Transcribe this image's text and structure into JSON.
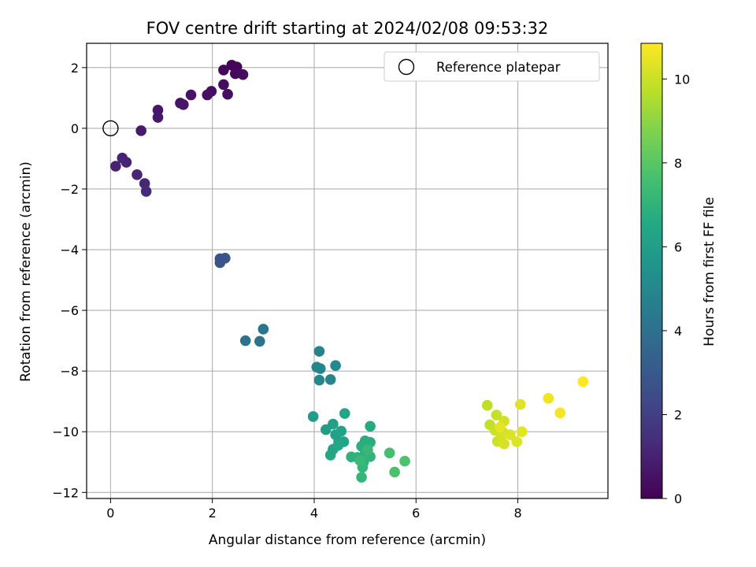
{
  "chart_data": {
    "type": "scatter",
    "title": "FOV centre drift starting at 2024/02/08 09:53:32",
    "xlabel": "Angular distance from reference (arcmin)",
    "ylabel": "Rotation from reference (arcmin)",
    "colorbar_label": "Hours from first FF file",
    "xlim": [
      -0.47,
      9.77
    ],
    "ylim": [
      -12.2,
      2.8
    ],
    "x_ticks": [
      0,
      2,
      4,
      6,
      8
    ],
    "y_ticks": [
      2,
      0,
      -2,
      -4,
      -6,
      -8,
      -10,
      -12
    ],
    "colorbar_range": [
      0,
      10.85
    ],
    "colorbar_ticks": [
      0,
      2,
      4,
      6,
      8,
      10
    ],
    "colormap": "viridis",
    "grid": true,
    "legend_position": "top-right",
    "reference": {
      "name": "Reference platepar",
      "x": 0,
      "y": 0
    },
    "points": [
      {
        "x": 2.38,
        "y": 2.08,
        "c": 0.1
      },
      {
        "x": 2.48,
        "y": 2.02,
        "c": 0.15
      },
      {
        "x": 2.22,
        "y": 1.92,
        "c": 0.2
      },
      {
        "x": 2.45,
        "y": 1.8,
        "c": 0.25
      },
      {
        "x": 2.6,
        "y": 1.77,
        "c": 0.3
      },
      {
        "x": 2.22,
        "y": 1.44,
        "c": 0.35
      },
      {
        "x": 2.3,
        "y": 1.12,
        "c": 0.4
      },
      {
        "x": 1.98,
        "y": 1.22,
        "c": 0.45
      },
      {
        "x": 1.9,
        "y": 1.1,
        "c": 0.5
      },
      {
        "x": 1.58,
        "y": 1.1,
        "c": 0.55
      },
      {
        "x": 1.37,
        "y": 0.83,
        "c": 0.6
      },
      {
        "x": 1.43,
        "y": 0.78,
        "c": 0.65
      },
      {
        "x": 0.93,
        "y": 0.6,
        "c": 0.7
      },
      {
        "x": 0.93,
        "y": 0.36,
        "c": 0.75
      },
      {
        "x": 0.6,
        "y": -0.08,
        "c": 0.8
      },
      {
        "x": 0.1,
        "y": -1.25,
        "c": 1.0
      },
      {
        "x": 0.23,
        "y": -0.98,
        "c": 1.05
      },
      {
        "x": 0.31,
        "y": -1.12,
        "c": 1.1
      },
      {
        "x": 0.52,
        "y": -1.53,
        "c": 1.15
      },
      {
        "x": 0.67,
        "y": -1.82,
        "c": 1.2
      },
      {
        "x": 0.7,
        "y": -2.08,
        "c": 1.25
      },
      {
        "x": 2.15,
        "y": -4.3,
        "c": 2.7
      },
      {
        "x": 2.25,
        "y": -4.28,
        "c": 2.75
      },
      {
        "x": 2.15,
        "y": -4.43,
        "c": 2.8
      },
      {
        "x": 2.65,
        "y": -7.0,
        "c": 4.1
      },
      {
        "x": 2.93,
        "y": -7.02,
        "c": 4.15
      },
      {
        "x": 3.0,
        "y": -6.62,
        "c": 4.2
      },
      {
        "x": 4.1,
        "y": -7.35,
        "c": 4.8
      },
      {
        "x": 4.05,
        "y": -7.87,
        "c": 4.85
      },
      {
        "x": 4.12,
        "y": -7.92,
        "c": 4.9
      },
      {
        "x": 4.1,
        "y": -8.3,
        "c": 4.95
      },
      {
        "x": 4.32,
        "y": -8.28,
        "c": 5.0
      },
      {
        "x": 4.42,
        "y": -7.82,
        "c": 5.05
      },
      {
        "x": 3.98,
        "y": -9.5,
        "c": 6.0
      },
      {
        "x": 4.23,
        "y": -9.93,
        "c": 6.05
      },
      {
        "x": 4.37,
        "y": -9.75,
        "c": 6.1
      },
      {
        "x": 4.42,
        "y": -10.1,
        "c": 6.15
      },
      {
        "x": 4.48,
        "y": -10.32,
        "c": 6.2
      },
      {
        "x": 4.53,
        "y": -9.98,
        "c": 6.25
      },
      {
        "x": 4.58,
        "y": -10.33,
        "c": 6.3
      },
      {
        "x": 4.37,
        "y": -10.58,
        "c": 6.35
      },
      {
        "x": 4.32,
        "y": -10.77,
        "c": 6.4
      },
      {
        "x": 4.6,
        "y": -9.4,
        "c": 6.45
      },
      {
        "x": 4.47,
        "y": -10.45,
        "c": 6.5
      },
      {
        "x": 5.1,
        "y": -9.82,
        "c": 6.6
      },
      {
        "x": 5.0,
        "y": -10.3,
        "c": 6.7
      },
      {
        "x": 5.1,
        "y": -10.35,
        "c": 6.75
      },
      {
        "x": 4.93,
        "y": -10.48,
        "c": 6.8
      },
      {
        "x": 5.0,
        "y": -10.65,
        "c": 6.85
      },
      {
        "x": 4.85,
        "y": -10.85,
        "c": 6.9
      },
      {
        "x": 4.73,
        "y": -10.83,
        "c": 6.95
      },
      {
        "x": 4.97,
        "y": -11.0,
        "c": 7.0
      },
      {
        "x": 5.1,
        "y": -10.82,
        "c": 7.05
      },
      {
        "x": 4.95,
        "y": -11.17,
        "c": 7.1
      },
      {
        "x": 4.93,
        "y": -11.5,
        "c": 7.15
      },
      {
        "x": 5.05,
        "y": -10.6,
        "c": 7.2
      },
      {
        "x": 4.9,
        "y": -10.95,
        "c": 7.25
      },
      {
        "x": 5.48,
        "y": -10.7,
        "c": 7.6
      },
      {
        "x": 5.58,
        "y": -11.33,
        "c": 7.7
      },
      {
        "x": 5.78,
        "y": -10.97,
        "c": 7.75
      },
      {
        "x": 7.4,
        "y": -9.13,
        "c": 9.8
      },
      {
        "x": 7.45,
        "y": -9.77,
        "c": 9.85
      },
      {
        "x": 7.58,
        "y": -9.45,
        "c": 9.9
      },
      {
        "x": 7.55,
        "y": -9.95,
        "c": 9.95
      },
      {
        "x": 7.6,
        "y": -10.32,
        "c": 10.0
      },
      {
        "x": 7.7,
        "y": -10.0,
        "c": 10.05
      },
      {
        "x": 7.73,
        "y": -9.65,
        "c": 10.1
      },
      {
        "x": 7.67,
        "y": -10.15,
        "c": 10.15
      },
      {
        "x": 7.73,
        "y": -10.4,
        "c": 10.2
      },
      {
        "x": 7.85,
        "y": -10.1,
        "c": 10.25
      },
      {
        "x": 7.98,
        "y": -10.33,
        "c": 10.3
      },
      {
        "x": 8.05,
        "y": -9.1,
        "c": 10.35
      },
      {
        "x": 8.08,
        "y": -10.0,
        "c": 10.4
      },
      {
        "x": 7.65,
        "y": -9.85,
        "c": 10.45
      },
      {
        "x": 8.6,
        "y": -8.9,
        "c": 10.6
      },
      {
        "x": 8.83,
        "y": -9.38,
        "c": 10.7
      },
      {
        "x": 9.28,
        "y": -8.35,
        "c": 10.85
      }
    ]
  }
}
